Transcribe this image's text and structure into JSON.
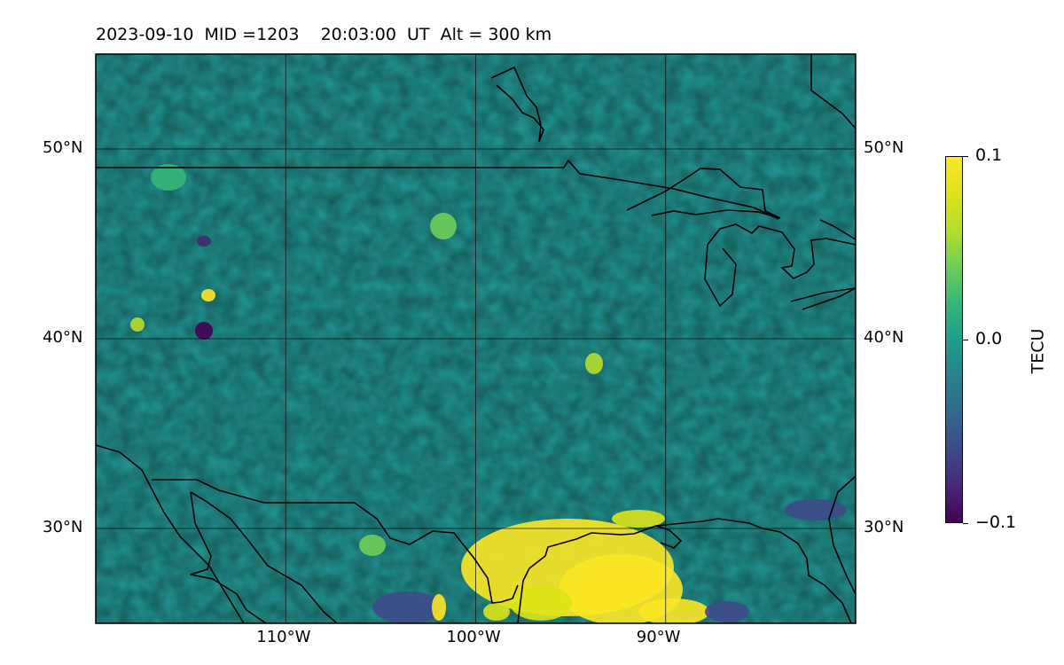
{
  "title": "2023-09-10  MID =1203    20:03:00  UT  Alt = 300 km",
  "map": {
    "extent": {
      "lon_min": -120,
      "lon_max": -80,
      "lat_min": 25,
      "lat_max": 55
    },
    "lat_ticks": [
      {
        "value": 50,
        "label": "50°N"
      },
      {
        "value": 40,
        "label": "40°N"
      },
      {
        "value": 30,
        "label": "30°N"
      }
    ],
    "lon_ticks": [
      {
        "value": -110,
        "label": "110°W"
      },
      {
        "value": -100,
        "label": "100°W"
      },
      {
        "value": -90,
        "label": "90°W"
      }
    ],
    "grid": true,
    "coastline_color": "#000000"
  },
  "colorbar": {
    "label": "TECU",
    "colormap": "viridis",
    "ticks": [
      {
        "value": 0.1,
        "label": "0.1"
      },
      {
        "value": 0.0,
        "label": "0.0"
      },
      {
        "value": -0.1,
        "label": "−0.1"
      }
    ],
    "range": [
      -0.1,
      0.1
    ]
  },
  "colors": {
    "low": "#440154",
    "mid": "#21908d",
    "high": "#fde725"
  }
}
